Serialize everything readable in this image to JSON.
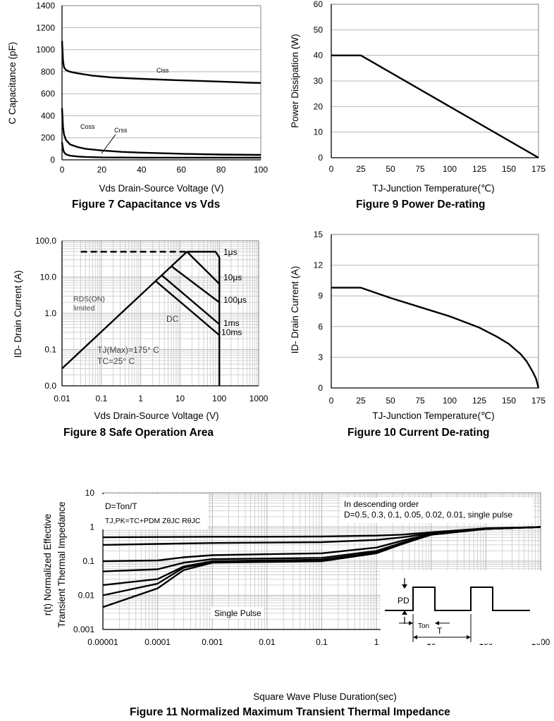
{
  "figures": {
    "fig7": {
      "caption": "Figure 7 Capacitance vs Vds",
      "xlabel": "Vds Drain-Source Voltage (V)",
      "ylabel": "C Capacitance (pF)",
      "labels": {
        "ciss": "Ciss",
        "coss": "Coss",
        "crss": "Crss"
      }
    },
    "fig9": {
      "caption": "Figure 9 Power De-rating",
      "xlabel": "TJ-Junction Temperature(℃)",
      "ylabel": "Power Dissipation (W)"
    },
    "fig8": {
      "caption": "Figure 8 Safe Operation Area",
      "xlabel": "Vds Drain-Source Voltage (V)",
      "ylabel": "ID- Drain Current (A)",
      "labels": {
        "rds_line1": "RDS(ON)",
        "rds_line2": "limited",
        "dc": "DC",
        "tj": "TJ(Max)=175° C",
        "tc": "TC=25° C",
        "p1us": "1μs",
        "p10us": "10μs",
        "p100us": "100μs",
        "p1ms": "1ms",
        "p10ms": "10ms"
      }
    },
    "fig10": {
      "caption": "Figure 10 Current De-rating",
      "xlabel": "TJ-Junction Temperature(℃)",
      "ylabel": "ID- Drain Current (A)"
    },
    "fig11": {
      "caption": "Figure 11 Normalized Maximum Transient Thermal Impedance",
      "xlabel": "Square Wave Pluse Duration(sec)",
      "ylabel_line1": "r(t) Normalized Effective",
      "ylabel_line2": "Transient Thermal Impedance",
      "box1_line1": "D=Ton/T",
      "box1_line2": "TJ,PK=TC+PDM ZθJC RθJC",
      "box2_line1": "In descending order",
      "box2_line2": "D=0.5, 0.3, 0.1, 0.05, 0.02, 0.01, single pulse",
      "single_pulse": "Single Pulse",
      "inset": {
        "pd": "PD",
        "ton": "Ton",
        "t": "T"
      }
    }
  },
  "chart_data": [
    {
      "id": "fig7",
      "type": "line",
      "xlim": [
        0,
        100
      ],
      "ylim": [
        0,
        1400
      ],
      "xticks": [
        0,
        20,
        40,
        60,
        80,
        100
      ],
      "yticks": [
        0,
        200,
        400,
        600,
        800,
        1000,
        1200,
        1400
      ],
      "grid": "horizontal",
      "series": [
        {
          "name": "Ciss",
          "x": [
            0,
            0.5,
            1,
            2,
            4,
            8,
            15,
            25,
            40,
            60,
            80,
            95,
            100
          ],
          "y": [
            1080,
            900,
            840,
            815,
            800,
            785,
            765,
            748,
            735,
            722,
            710,
            700,
            698
          ]
        },
        {
          "name": "Coss",
          "x": [
            0,
            0.5,
            1,
            2,
            4,
            8,
            12,
            20,
            30,
            40,
            60,
            80,
            100
          ],
          "y": [
            470,
            300,
            230,
            180,
            140,
            115,
            100,
            85,
            72,
            65,
            55,
            48,
            45
          ]
        },
        {
          "name": "Crss",
          "x": [
            0,
            0.5,
            1,
            2,
            4,
            8,
            12,
            20,
            30,
            40,
            60,
            80,
            100
          ],
          "y": [
            160,
            100,
            70,
            50,
            38,
            30,
            26,
            22,
            21,
            20,
            20,
            20,
            20
          ]
        }
      ]
    },
    {
      "id": "fig9",
      "type": "line",
      "xlim": [
        0,
        175
      ],
      "ylim": [
        0,
        60
      ],
      "xticks": [
        0,
        25,
        50,
        75,
        100,
        125,
        150,
        175
      ],
      "yticks": [
        0,
        10,
        20,
        30,
        40,
        50,
        60
      ],
      "grid": "horizontal",
      "series": [
        {
          "x": [
            0,
            25,
            175
          ],
          "y": [
            40,
            40,
            0
          ]
        }
      ]
    },
    {
      "id": "fig8",
      "type": "line",
      "xscale": "log",
      "yscale": "log",
      "xlim": [
        0.01,
        1000
      ],
      "ylim": [
        0.01,
        100
      ],
      "xticks": [
        0.01,
        0.1,
        1,
        10,
        100,
        1000
      ],
      "xtick_labels": [
        "0.01",
        "0.1",
        "1",
        "10",
        "100",
        "1000"
      ],
      "yticks": [
        0.01,
        0.1,
        1,
        10,
        100
      ],
      "ytick_labels": [
        "0.0",
        "0.1",
        "1.0",
        "10.0",
        "100.0"
      ],
      "grid": "both",
      "series": [
        {
          "name": "RDS(ON) limited",
          "x": [
            0.01,
            15
          ],
          "y": [
            0.03,
            50
          ]
        },
        {
          "name": "Package limit",
          "style": "dashed",
          "x": [
            0.03,
            15
          ],
          "y": [
            50,
            50
          ]
        },
        {
          "name": "1μs",
          "x": [
            15,
            80,
            100,
            100
          ],
          "y": [
            50,
            50,
            35,
            3.5
          ]
        },
        {
          "name": "10μs",
          "x": [
            15,
            100
          ],
          "y": [
            50,
            6.5
          ]
        },
        {
          "name": "100μs",
          "x": [
            6,
            100
          ],
          "y": [
            20,
            2
          ]
        },
        {
          "name": "1ms",
          "x": [
            3.5,
            100
          ],
          "y": [
            11,
            0.5
          ]
        },
        {
          "name": "10ms",
          "x": [
            2.5,
            100
          ],
          "y": [
            7.5,
            0.25
          ]
        },
        {
          "name": "Vds limit",
          "x": [
            100,
            100
          ],
          "y": [
            35,
            0.01
          ]
        }
      ]
    },
    {
      "id": "fig10",
      "type": "line",
      "xlim": [
        0,
        175
      ],
      "ylim": [
        0,
        15
      ],
      "xticks": [
        0,
        25,
        50,
        75,
        100,
        125,
        150,
        175
      ],
      "yticks": [
        0,
        3,
        6,
        9,
        12,
        15
      ],
      "grid": "horizontal",
      "series": [
        {
          "x": [
            0,
            25,
            50,
            75,
            100,
            125,
            140,
            150,
            160,
            165,
            170,
            173,
            175
          ],
          "y": [
            9.8,
            9.8,
            8.8,
            7.9,
            7,
            5.9,
            5,
            4.3,
            3.3,
            2.6,
            1.6,
            0.9,
            0
          ]
        }
      ]
    },
    {
      "id": "fig11",
      "type": "line",
      "xscale": "log",
      "yscale": "log",
      "xlim": [
        1e-05,
        1000
      ],
      "ylim": [
        0.001,
        10
      ],
      "xticks": [
        1e-05,
        0.0001,
        0.001,
        0.01,
        0.1,
        1,
        10,
        100,
        1000
      ],
      "xtick_labels": [
        "0.00001",
        "0.0001",
        "0.001",
        "0.01",
        "0.1",
        "1",
        "10",
        "100",
        "1000"
      ],
      "yticks": [
        0.001,
        0.01,
        0.1,
        1,
        10
      ],
      "ytick_labels": [
        "0.001",
        "0.01",
        "0.1",
        "1",
        "10"
      ],
      "grid": "both",
      "series": [
        {
          "name": "D=0.5",
          "x": [
            1e-05,
            0.0001,
            0.001,
            0.01,
            0.1,
            1,
            3,
            10,
            100,
            1000
          ],
          "y": [
            0.5,
            0.51,
            0.52,
            0.52,
            0.53,
            0.56,
            0.6,
            0.7,
            0.92,
            1
          ]
        },
        {
          "name": "D=0.3",
          "x": [
            1e-05,
            0.0001,
            0.001,
            0.01,
            0.1,
            1,
            3,
            10,
            100,
            1000
          ],
          "y": [
            0.3,
            0.32,
            0.34,
            0.35,
            0.36,
            0.42,
            0.5,
            0.65,
            0.9,
            1
          ]
        },
        {
          "name": "D=0.1",
          "x": [
            1e-05,
            0.0001,
            0.0003,
            0.001,
            0.01,
            0.1,
            1,
            3,
            10,
            100,
            1000
          ],
          "y": [
            0.1,
            0.105,
            0.13,
            0.15,
            0.16,
            0.17,
            0.25,
            0.4,
            0.62,
            0.88,
            1
          ]
        },
        {
          "name": "D=0.05",
          "x": [
            1e-05,
            0.0001,
            0.0003,
            0.001,
            0.01,
            0.1,
            1,
            3,
            10,
            100,
            1000
          ],
          "y": [
            0.05,
            0.058,
            0.09,
            0.115,
            0.12,
            0.125,
            0.2,
            0.35,
            0.6,
            0.88,
            1
          ]
        },
        {
          "name": "D=0.02",
          "x": [
            1e-05,
            0.0001,
            0.0003,
            0.001,
            0.01,
            0.1,
            1,
            3,
            10,
            100,
            1000
          ],
          "y": [
            0.02,
            0.03,
            0.07,
            0.1,
            0.105,
            0.11,
            0.18,
            0.33,
            0.6,
            0.88,
            1
          ]
        },
        {
          "name": "D=0.01",
          "x": [
            1e-05,
            0.0001,
            0.0003,
            0.001,
            0.01,
            0.1,
            1,
            3,
            10,
            100,
            1000
          ],
          "y": [
            0.01,
            0.022,
            0.065,
            0.095,
            0.1,
            0.105,
            0.18,
            0.33,
            0.6,
            0.88,
            1
          ]
        },
        {
          "name": "single pulse",
          "x": [
            1e-05,
            0.0001,
            0.0003,
            0.001,
            0.01,
            0.1,
            1,
            3,
            10,
            100,
            1000
          ],
          "y": [
            0.0045,
            0.016,
            0.055,
            0.09,
            0.095,
            0.1,
            0.17,
            0.32,
            0.6,
            0.88,
            1
          ]
        }
      ]
    }
  ]
}
